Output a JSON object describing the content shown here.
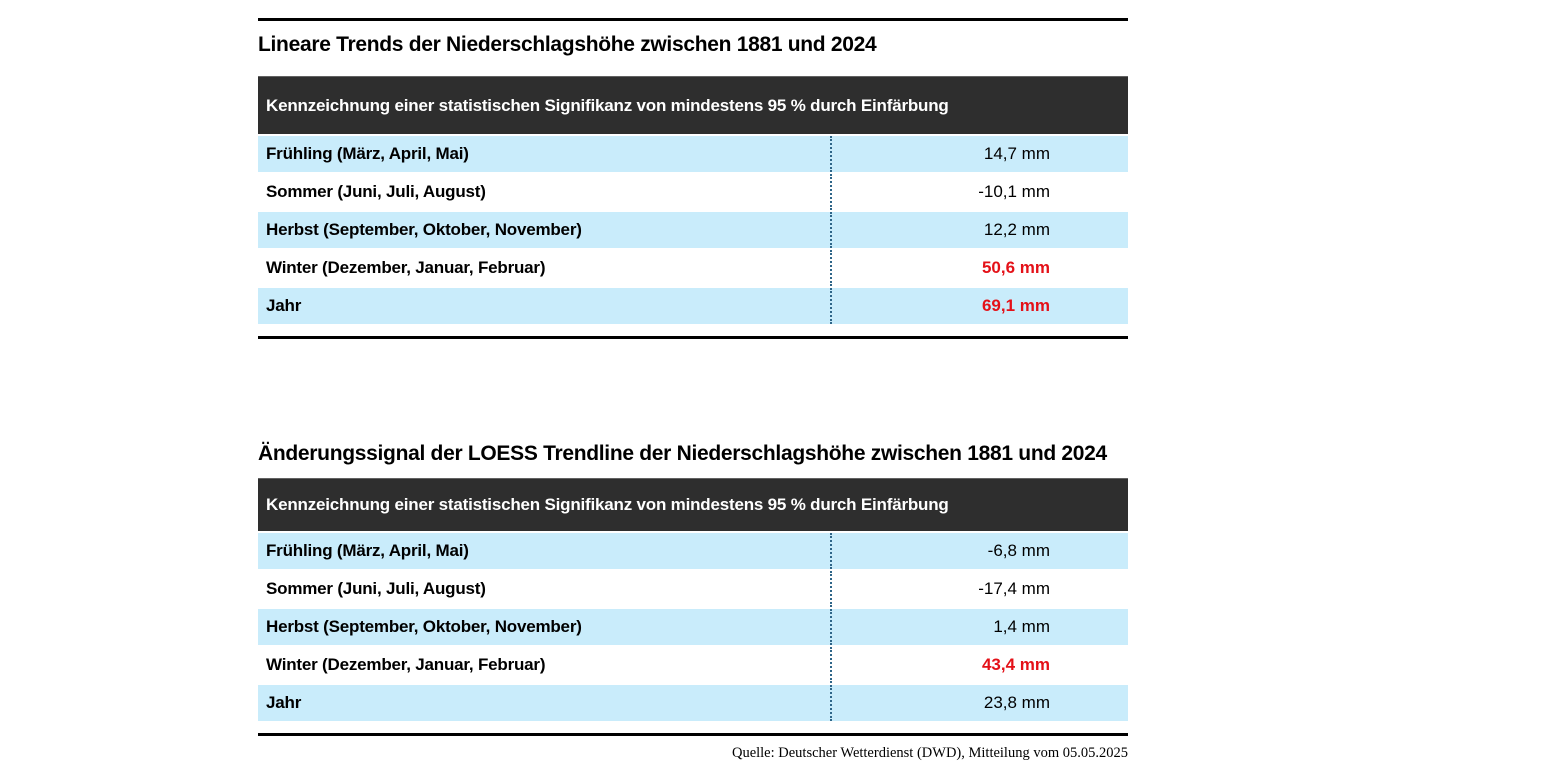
{
  "colors": {
    "row_highlight": "#c9ecfb",
    "header_bg": "#2e2e2e",
    "significant_red": "#e41118",
    "rule_black": "#000000",
    "separator_blue": "#2e6588"
  },
  "tables": [
    {
      "title": "Lineare Trends der Niederschlagshöhe zwischen 1881 und 2024",
      "header": "Kennzeichnung einer statistischen Signifikanz von mindestens 95 % durch Einfärbung",
      "rows": [
        {
          "label": "Frühling (März, April, Mai)",
          "value": "14,7 mm",
          "significant": false,
          "shaded": true
        },
        {
          "label": "Sommer (Juni, Juli, August)",
          "value": "-10,1 mm",
          "significant": false,
          "shaded": false
        },
        {
          "label": "Herbst (September, Oktober, November)",
          "value": "12,2 mm",
          "significant": false,
          "shaded": true
        },
        {
          "label": "Winter (Dezember, Januar, Februar)",
          "value": "50,6 mm",
          "significant": true,
          "shaded": false
        },
        {
          "label": "Jahr",
          "value": "69,1 mm",
          "significant": true,
          "shaded": true
        }
      ]
    },
    {
      "title": "Änderungssignal der LOESS Trendline der Niederschlagshöhe zwischen 1881 und 2024",
      "header": "Kennzeichnung einer statistischen Signifikanz von mindestens 95 % durch Einfärbung",
      "rows": [
        {
          "label": "Frühling (März, April, Mai)",
          "value": "-6,8 mm",
          "significant": false,
          "shaded": true
        },
        {
          "label": "Sommer (Juni, Juli, August)",
          "value": "-17,4 mm",
          "significant": false,
          "shaded": false
        },
        {
          "label": "Herbst (September, Oktober, November)",
          "value": "1,4 mm",
          "significant": false,
          "shaded": true
        },
        {
          "label": "Winter (Dezember, Januar, Februar)",
          "value": "43,4 mm",
          "significant": true,
          "shaded": false
        },
        {
          "label": "Jahr",
          "value": "23,8 mm",
          "significant": false,
          "shaded": true
        }
      ]
    }
  ],
  "source": "Quelle: Deutscher Wetterdienst (DWD), Mitteilung vom 05.05.2025",
  "chart_data": [
    {
      "type": "table",
      "title": "Lineare Trends der Niederschlagshöhe zwischen 1881 und 2024",
      "subtitle": "Kennzeichnung einer statistischen Signifikanz von mindestens 95 % durch Einfärbung",
      "categories": [
        "Frühling (März, April, Mai)",
        "Sommer (Juni, Juli, August)",
        "Herbst (September, Oktober, November)",
        "Winter (Dezember, Januar, Februar)",
        "Jahr"
      ],
      "values_mm": [
        14.7,
        -10.1,
        12.2,
        50.6,
        69.1
      ],
      "significant_95pct": [
        false,
        false,
        false,
        true,
        true
      ],
      "unit": "mm"
    },
    {
      "type": "table",
      "title": "Änderungssignal der LOESS Trendline der Niederschlagshöhe zwischen 1881 und 2024",
      "subtitle": "Kennzeichnung einer statistischen Signifikanz von mindestens 95 % durch Einfärbung",
      "categories": [
        "Frühling (März, April, Mai)",
        "Sommer (Juni, Juli, August)",
        "Herbst (September, Oktober, November)",
        "Winter (Dezember, Januar, Februar)",
        "Jahr"
      ],
      "values_mm": [
        -6.8,
        -17.4,
        1.4,
        43.4,
        23.8
      ],
      "significant_95pct": [
        false,
        false,
        false,
        true,
        false
      ],
      "unit": "mm"
    }
  ]
}
